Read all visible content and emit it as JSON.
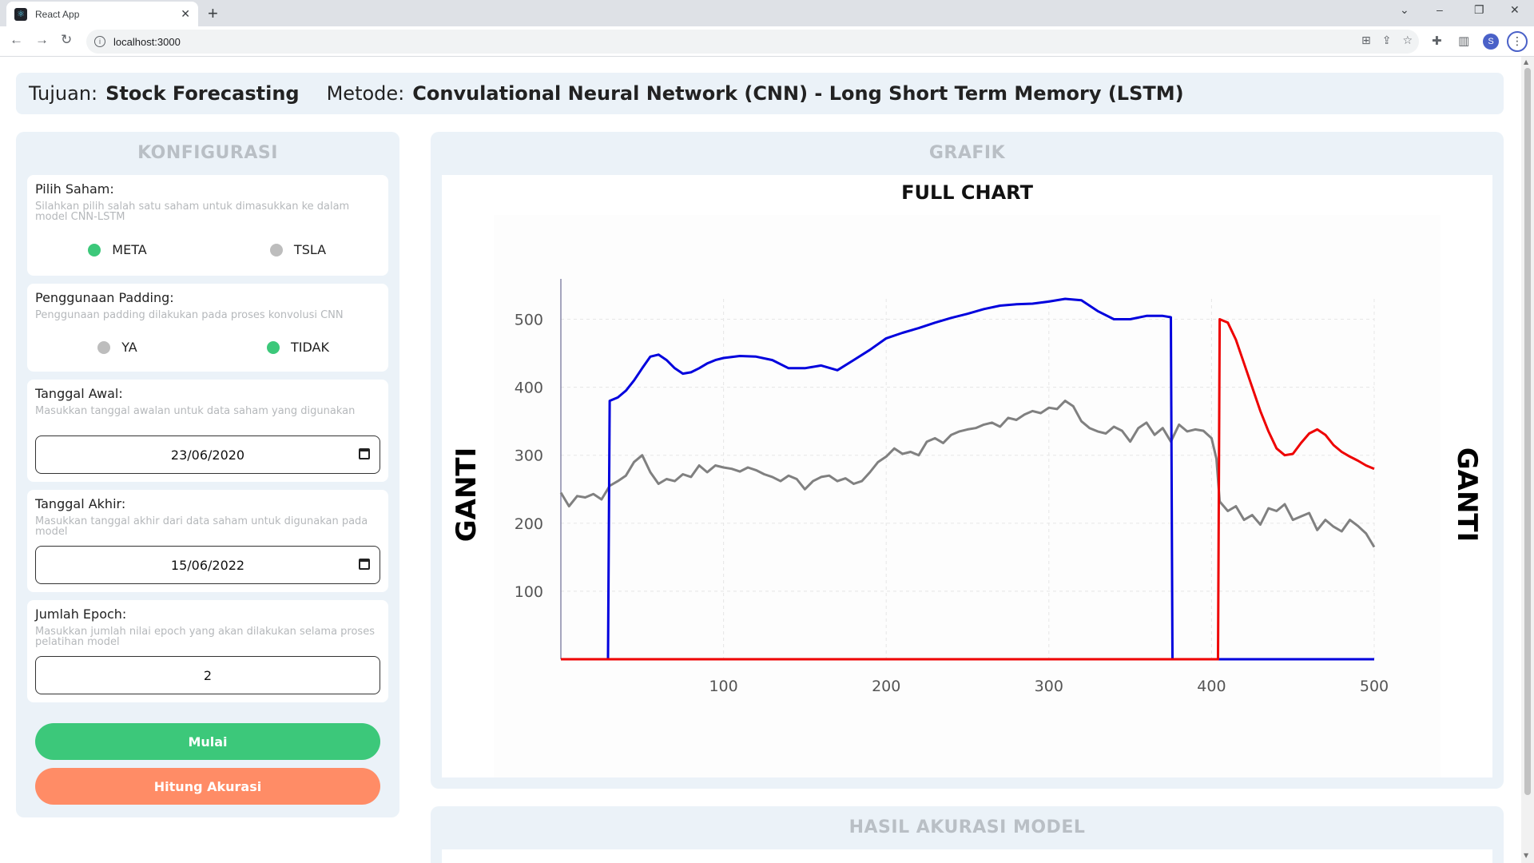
{
  "browser": {
    "tab_title": "React App",
    "tab_close": "✕",
    "new_tab": "+",
    "url": "localhost:3000",
    "profile_initial": "S"
  },
  "header": {
    "tujuan_label": "Tujuan:",
    "tujuan_value": "Stock Forecasting",
    "metode_label": "Metode:",
    "metode_value": "Convulational Neural Network (CNN) - Long Short Term Memory (LSTM)"
  },
  "config": {
    "title": "KONFIGURASI",
    "saham": {
      "label": "Pilih Saham:",
      "desc": "Silahkan pilih salah satu saham untuk dimasukkan ke dalam model CNN-LSTM",
      "options": [
        "META",
        "TSLA"
      ],
      "selected": "META"
    },
    "padding": {
      "label": "Penggunaan Padding:",
      "desc": "Penggunaan padding dilakukan pada proses konvolusi CNN",
      "options": [
        "YA",
        "TIDAK"
      ],
      "selected": "TIDAK"
    },
    "tanggal_awal": {
      "label": "Tanggal Awal:",
      "desc": "Masukkan tanggal awalan untuk data saham yang digunakan",
      "value": "23/06/2020"
    },
    "tanggal_akhir": {
      "label": "Tanggal Akhir:",
      "desc": "Masukkan tanggal akhir dari data saham untuk digunakan pada model",
      "value": "15/06/2022"
    },
    "epoch": {
      "label": "Jumlah Epoch:",
      "desc": "Masukkan jumlah nilai epoch yang akan dilakukan selama proses pelatihan model",
      "value": "2"
    },
    "btn_start": "Mulai",
    "btn_accuracy": "Hitung Akurasi"
  },
  "grafik": {
    "title": "GRAFIK"
  },
  "hasil": {
    "title": "HASIL AKURASI MODEL"
  },
  "colors": {
    "actual": "#808080",
    "train_pred": "#0000dd",
    "test_pred": "#ee0000",
    "accent_green": "#3cc87a",
    "accent_orange": "#ff8c66"
  },
  "chart_data": {
    "type": "line",
    "title": "FULL CHART",
    "ylabel_left": "GANTI",
    "ylabel_right": "GANTI",
    "xlim": [
      0,
      500
    ],
    "ylim": [
      0,
      530
    ],
    "x_ticks": [
      100,
      200,
      300,
      400,
      500
    ],
    "y_ticks": [
      100,
      200,
      300,
      400,
      500
    ],
    "grid": true,
    "series": [
      {
        "color": "#808080",
        "x": [
          0,
          5,
          10,
          15,
          20,
          25,
          30,
          35,
          40,
          45,
          50,
          55,
          60,
          65,
          70,
          75,
          80,
          85,
          90,
          95,
          100,
          105,
          110,
          115,
          120,
          125,
          130,
          135,
          140,
          145,
          150,
          155,
          160,
          165,
          170,
          175,
          180,
          185,
          190,
          195,
          200,
          205,
          210,
          215,
          220,
          225,
          230,
          235,
          240,
          245,
          250,
          255,
          260,
          265,
          270,
          275,
          280,
          285,
          290,
          295,
          300,
          305,
          310,
          315,
          320,
          325,
          330,
          335,
          340,
          345,
          350,
          355,
          360,
          365,
          370,
          375,
          380,
          385,
          390,
          395,
          400,
          403,
          405,
          410,
          415,
          420,
          425,
          430,
          435,
          440,
          445,
          450,
          455,
          460,
          465,
          470,
          475,
          480,
          485,
          490,
          495,
          500
        ],
        "values": [
          245,
          225,
          240,
          238,
          243,
          235,
          255,
          262,
          270,
          290,
          300,
          275,
          258,
          265,
          262,
          272,
          268,
          285,
          275,
          285,
          282,
          280,
          276,
          282,
          278,
          272,
          268,
          262,
          270,
          265,
          250,
          262,
          268,
          270,
          262,
          266,
          258,
          262,
          275,
          290,
          298,
          310,
          302,
          305,
          300,
          320,
          325,
          318,
          330,
          335,
          338,
          340,
          345,
          348,
          342,
          355,
          352,
          360,
          365,
          362,
          370,
          368,
          380,
          372,
          350,
          340,
          335,
          332,
          342,
          336,
          320,
          340,
          348,
          330,
          340,
          320,
          345,
          335,
          338,
          336,
          325,
          295,
          232,
          218,
          225,
          205,
          212,
          198,
          222,
          218,
          228,
          205,
          210,
          215,
          190,
          205,
          195,
          188,
          205,
          196,
          185,
          165
        ]
      },
      {
        "color": "#0000dd",
        "x": [
          0,
          29,
          30,
          35,
          40,
          45,
          50,
          55,
          60,
          65,
          70,
          75,
          80,
          85,
          90,
          95,
          100,
          110,
          120,
          130,
          140,
          150,
          160,
          170,
          180,
          190,
          200,
          210,
          220,
          230,
          240,
          250,
          260,
          270,
          280,
          290,
          300,
          310,
          320,
          330,
          340,
          350,
          360,
          370,
          375,
          376,
          377,
          500
        ],
        "values": [
          0,
          0,
          380,
          385,
          395,
          410,
          428,
          445,
          448,
          440,
          428,
          420,
          422,
          428,
          435,
          440,
          443,
          446,
          445,
          440,
          428,
          428,
          432,
          425,
          440,
          455,
          472,
          480,
          487,
          495,
          502,
          508,
          515,
          520,
          522,
          523,
          526,
          530,
          528,
          512,
          500,
          500,
          505,
          505,
          503,
          0,
          0,
          0
        ]
      },
      {
        "color": "#ee0000",
        "x": [
          0,
          404,
          405,
          410,
          415,
          420,
          425,
          430,
          435,
          440,
          445,
          450,
          455,
          460,
          465,
          470,
          475,
          480,
          485,
          490,
          495,
          500
        ],
        "values": [
          0,
          0,
          500,
          495,
          470,
          435,
          400,
          365,
          335,
          310,
          300,
          302,
          318,
          332,
          338,
          330,
          315,
          305,
          298,
          292,
          285,
          280
        ]
      }
    ]
  }
}
